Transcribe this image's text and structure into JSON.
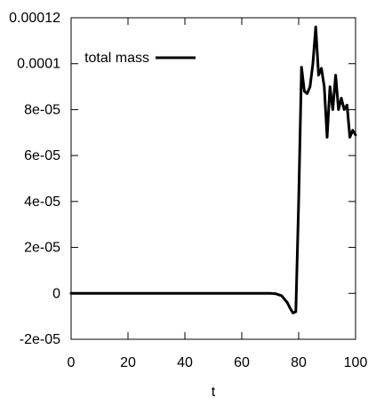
{
  "chart_data": {
    "type": "line",
    "title": "",
    "xlabel": "t",
    "ylabel": "",
    "xlim": [
      0,
      100
    ],
    "ylim": [
      -2e-05,
      0.00012
    ],
    "xticks": [
      0,
      20,
      40,
      60,
      80,
      100
    ],
    "yticks": [
      -2e-05,
      0,
      2e-05,
      4e-05,
      6e-05,
      8e-05,
      0.0001,
      0.00012
    ],
    "xtick_labels": [
      "0",
      "20",
      "40",
      "60",
      "80",
      "100"
    ],
    "ytick_labels": [
      "-2e-05",
      "0",
      "2e-05",
      "4e-05",
      "6e-05",
      "8e-05",
      "0.0001",
      "0.00012"
    ],
    "grid": false,
    "legend": "top-left",
    "series": [
      {
        "name": "total mass",
        "color": "#000000",
        "x": [
          0,
          10,
          20,
          30,
          40,
          50,
          60,
          70,
          72,
          74,
          75,
          76,
          77,
          78,
          79,
          80,
          81,
          82,
          83,
          84,
          85,
          86,
          87,
          88,
          89,
          90,
          91,
          92,
          93,
          94,
          95,
          96,
          97,
          98,
          99,
          100
        ],
        "y": [
          0,
          0,
          0,
          0,
          0,
          0,
          0,
          0,
          -2e-07,
          -1e-06,
          -2.5e-06,
          -4e-06,
          -6.5e-06,
          -8.5e-06,
          -8e-06,
          4e-05,
          9.85e-05,
          8.8e-05,
          8.7e-05,
          9e-05,
          0.0001,
          0.000116,
          9.5e-05,
          9.8e-05,
          9e-05,
          6.8e-05,
          9e-05,
          8e-05,
          9.5e-05,
          8e-05,
          8.5e-05,
          8e-05,
          8.2e-05,
          6.8e-05,
          7.1e-05,
          6.9e-05
        ]
      }
    ]
  }
}
